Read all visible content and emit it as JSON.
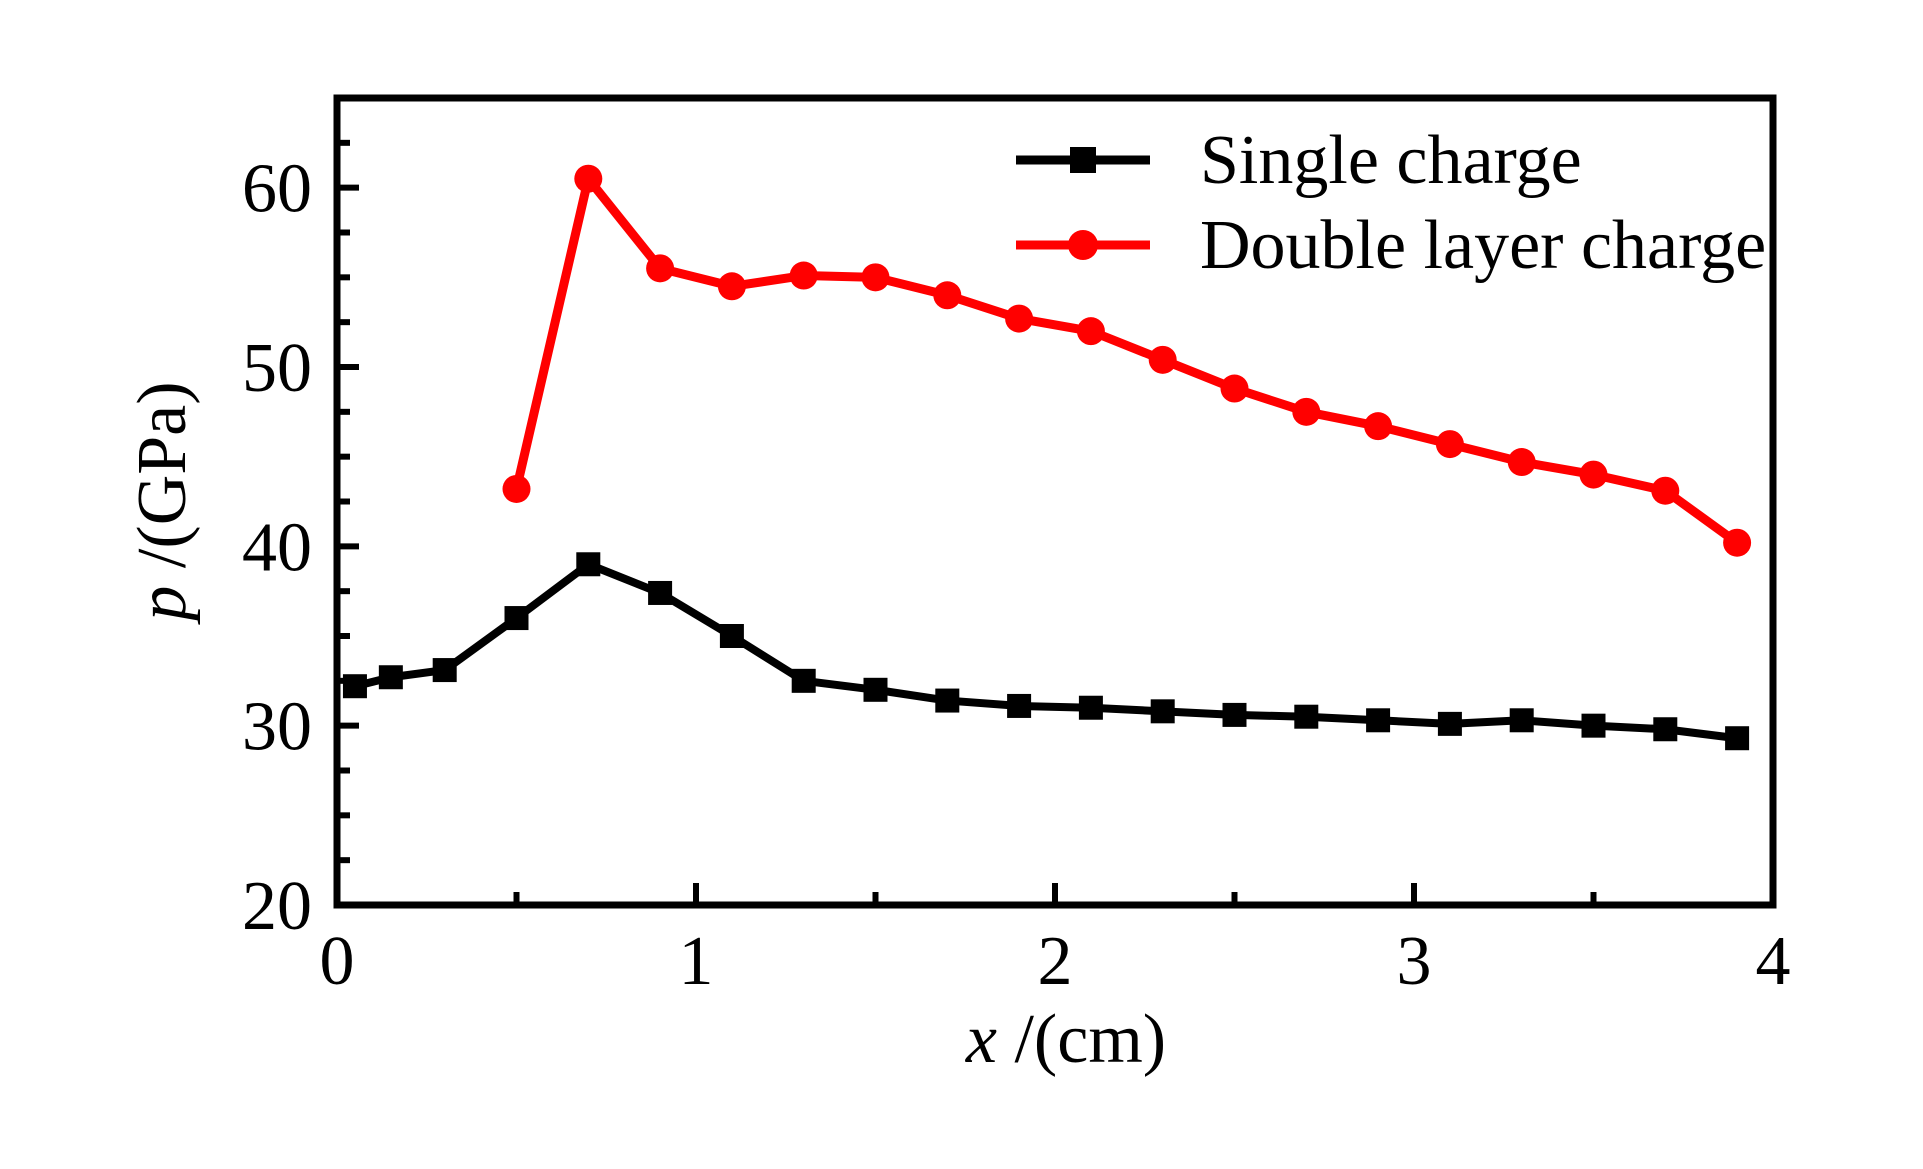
{
  "figure": {
    "background": "#ffffff",
    "frame_color": "#000000",
    "x_axis": {
      "title_var": "x",
      "title_rest": "/(cm)",
      "min": 0,
      "max": 4,
      "major_ticks": [
        0,
        1,
        2,
        3,
        4
      ],
      "minor_step": 0.5
    },
    "y_axis": {
      "title_var": "p",
      "title_rest": "/(GPa)",
      "min": 20,
      "max": 65,
      "major_ticks": [
        20,
        30,
        40,
        50,
        60
      ],
      "minor_step": 2.5
    },
    "legend": {
      "entries": [
        {
          "label": "Single charge",
          "color": "#000000",
          "marker": "square"
        },
        {
          "label": "Double layer charge",
          "color": "#ff0000",
          "marker": "circle"
        }
      ]
    }
  },
  "chart_data": {
    "type": "line",
    "title": "",
    "xlabel": "x/(cm)",
    "ylabel": "p/(GPa)",
    "xlim": [
      0,
      4
    ],
    "ylim": [
      20,
      65
    ],
    "grid": false,
    "legend_position": "top-right-inside",
    "series": [
      {
        "name": "Single charge",
        "color": "#000000",
        "marker": "square",
        "line_width": 8,
        "x": [
          0.05,
          0.15,
          0.3,
          0.5,
          0.7,
          0.9,
          1.1,
          1.3,
          1.5,
          1.7,
          1.9,
          2.1,
          2.3,
          2.5,
          2.7,
          2.9,
          3.1,
          3.3,
          3.5,
          3.7,
          3.9
        ],
        "y": [
          32.2,
          32.7,
          33.1,
          36.0,
          39.0,
          37.4,
          35.0,
          32.5,
          32.0,
          31.4,
          31.1,
          31.0,
          30.8,
          30.6,
          30.5,
          30.3,
          30.1,
          30.3,
          30.0,
          29.8,
          29.3
        ]
      },
      {
        "name": "Double layer charge",
        "color": "#ff0000",
        "marker": "circle",
        "line_width": 9,
        "x": [
          0.5,
          0.7,
          0.9,
          1.1,
          1.3,
          1.5,
          1.7,
          1.9,
          2.1,
          2.3,
          2.5,
          2.7,
          2.9,
          3.1,
          3.3,
          3.5,
          3.7,
          3.9
        ],
        "y": [
          43.2,
          60.5,
          55.5,
          54.5,
          55.1,
          55.0,
          54.0,
          52.7,
          52.0,
          50.4,
          48.8,
          47.5,
          46.7,
          45.7,
          44.7,
          44.0,
          43.1,
          40.2
        ]
      }
    ]
  }
}
